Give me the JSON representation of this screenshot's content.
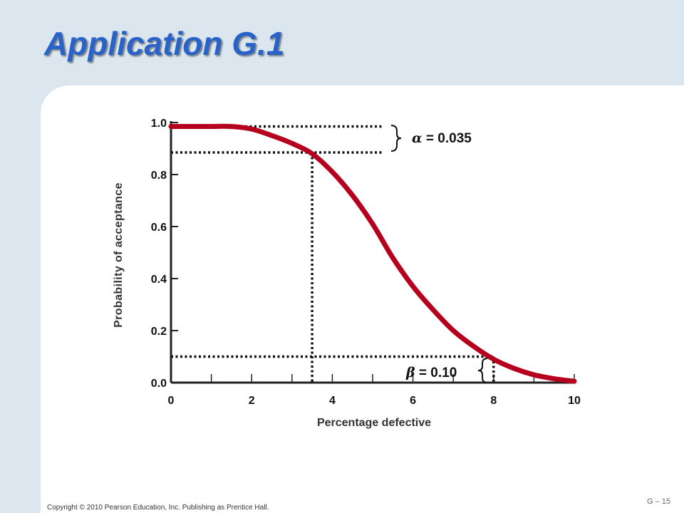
{
  "slide": {
    "title": "Application G.1",
    "copyright": "Copyright © 2010 Pearson Education, Inc. Publishing as Prentice Hall.",
    "page_number": "G – 15"
  },
  "colors": {
    "background": "#dbe6ee",
    "title": "#2a63c7",
    "curve": "#b5001e",
    "axis": "#222222"
  },
  "chart_data": {
    "type": "line",
    "title": "",
    "xlabel": "Percentage defective",
    "ylabel": "Probability of acceptance",
    "xlim": [
      0,
      10
    ],
    "ylim": [
      0,
      1
    ],
    "x_ticks": [
      0,
      2,
      4,
      6,
      8,
      10
    ],
    "x_tick_labels": [
      "0",
      "2",
      "4",
      "6",
      "8",
      "10"
    ],
    "x_minor_ticks": [
      1,
      2,
      3,
      4,
      5,
      6,
      7,
      8,
      9,
      10
    ],
    "y_ticks": [
      0,
      0.2,
      0.4,
      0.6,
      0.8,
      1.0
    ],
    "y_tick_labels": [
      "0.0",
      "0.2",
      "0.4",
      "0.6",
      "0.8",
      "1.0"
    ],
    "grid": false,
    "series": [
      {
        "x": [
          0,
          1,
          1.5,
          2,
          2.5,
          3,
          3.5,
          4,
          4.5,
          5,
          5.5,
          6,
          6.5,
          7,
          7.5,
          8,
          8.5,
          9,
          9.5,
          10
        ],
        "y": [
          0.985,
          0.985,
          0.985,
          0.975,
          0.95,
          0.92,
          0.88,
          0.81,
          0.72,
          0.61,
          0.48,
          0.37,
          0.28,
          0.2,
          0.14,
          0.09,
          0.055,
          0.03,
          0.015,
          0.005
        ]
      }
    ],
    "reference_lines": {
      "aql_x": 3.5,
      "aql_y": 0.885,
      "top_y": 0.985,
      "ltpd_x": 8,
      "ltpd_y": 0.1
    },
    "annotations": {
      "alpha_symbol": "α",
      "alpha_value": " = 0.035",
      "beta_symbol": "β",
      "beta_value": " = 0.10"
    }
  }
}
